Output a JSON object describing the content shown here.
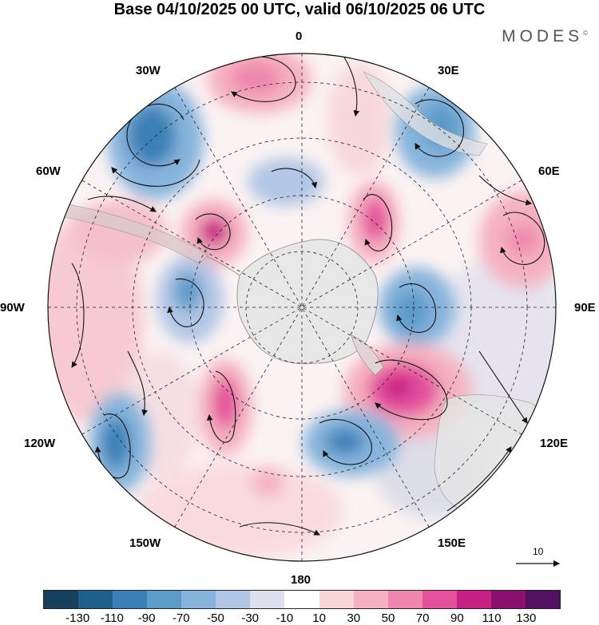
{
  "title": "Base 04/10/2025 00 UTC, valid 06/10/2025 06 UTC",
  "brand": "MODES",
  "brand_mark": "©",
  "longitude_labels": {
    "lon_0": "0",
    "lon_30e": "30E",
    "lon_60e": "60E",
    "lon_90e": "90E",
    "lon_120e": "120E",
    "lon_150e": "150E",
    "lon_180": "180",
    "lon_150w": "150W",
    "lon_120w": "120W",
    "lon_90w": "90W",
    "lon_60w": "60W",
    "lon_30w": "30W"
  },
  "reference_vector": "10",
  "colorbar": {
    "colors": [
      "#16405e",
      "#1f5f8b",
      "#3a80b6",
      "#5b9bc9",
      "#86b4dc",
      "#b2c6e6",
      "#dfe0ef",
      "#ffffff",
      "#f9d7d7",
      "#f5b1c0",
      "#ef86ad",
      "#e4509c",
      "#c81f83",
      "#8b0f6e",
      "#541060"
    ],
    "ticks": [
      "-130",
      "-110",
      "-90",
      "-70",
      "-50",
      "-30",
      "-10",
      "10",
      "30",
      "50",
      "70",
      "90",
      "110",
      "130"
    ]
  }
}
